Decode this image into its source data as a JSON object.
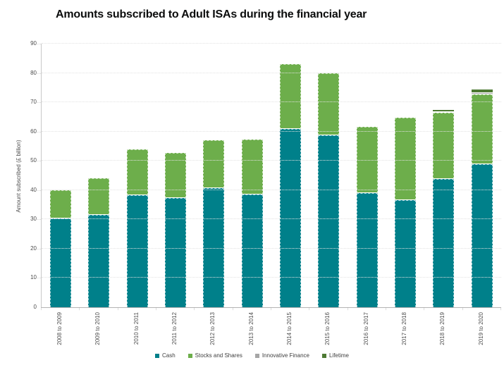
{
  "title": "Amounts subscribed to Adult ISAs during the financial year",
  "chart_data": {
    "type": "bar",
    "stacked": true,
    "title": "Amounts subscribed to Adult ISAs during the financial year",
    "xlabel": "",
    "ylabel": "Amount subscribed (£ billion)",
    "ylim": [
      0,
      90
    ],
    "ytick_step": 10,
    "grid": "horizontal dotted gridlines every 10",
    "legend_position": "bottom",
    "categories": [
      "2008 to 2009",
      "2009 to 2010",
      "2010 to 2011",
      "2011 to 2012",
      "2012 to 2013",
      "2013 to 2014",
      "2014 to 2015",
      "2015 to 2016",
      "2016 to 2017",
      "2017 to 2018",
      "2018 to 2019",
      "2019 to 2020"
    ],
    "series": [
      {
        "name": "Cash",
        "color": "#00808a",
        "values": [
          30.4,
          31.5,
          38.2,
          37.2,
          40.6,
          38.5,
          60.8,
          58.7,
          39.0,
          36.5,
          43.8,
          48.8
        ]
      },
      {
        "name": "Stocks and Shares",
        "color": "#6dae4b",
        "values": [
          9.5,
          12.5,
          15.6,
          15.5,
          16.5,
          18.7,
          22.2,
          21.1,
          22.5,
          28.2,
          22.6,
          23.8
        ]
      },
      {
        "name": "Innovative Finance",
        "color": "#a6a6a6",
        "values": [
          0,
          0,
          0,
          0,
          0,
          0,
          0,
          0,
          0,
          0.4,
          0.3,
          0.5
        ]
      },
      {
        "name": "Lifetime",
        "color": "#4e7a33",
        "values": [
          0,
          0,
          0,
          0,
          0,
          0,
          0,
          0,
          0,
          0,
          0.6,
          1.3
        ]
      }
    ]
  }
}
